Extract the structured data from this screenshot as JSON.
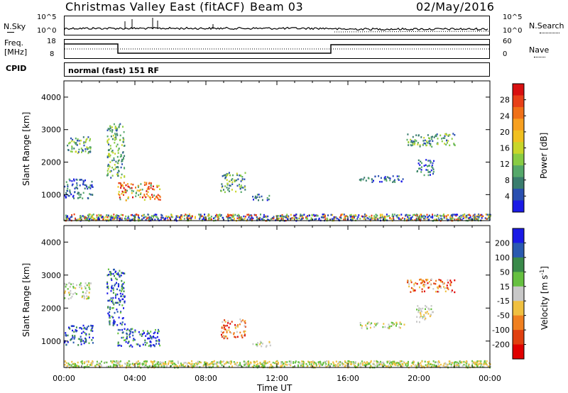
{
  "header": {
    "station": "Christmas Valley East (fitACF)",
    "beam": "Beam 03",
    "date": "02/May/2016"
  },
  "top_panels": {
    "nsky_label": "N.Sky",
    "nsky_ticks": [
      "10^5",
      "10^0"
    ],
    "nsearch_label": "N.Search",
    "nsearch_ticks": [
      "10^5",
      "10^0"
    ],
    "freq_label_1": "Freq.",
    "freq_label_2": "[MHz]",
    "freq_ticks": [
      "18",
      "8"
    ],
    "nave_label": "Nave",
    "nave_ticks": [
      "60",
      "0"
    ],
    "cpid_label": "CPID",
    "mode_text": "normal (fast) 151 RF"
  },
  "chart_data": [
    {
      "type": "heatmap",
      "name": "power-panel",
      "ylabel": "Slant Range [km]",
      "xlabel": "",
      "x_ticks": [
        "00:00",
        "04:00",
        "08:00",
        "12:00",
        "16:00",
        "20:00",
        "00:00"
      ],
      "y_ticks": [
        1000,
        2000,
        3000,
        4000
      ],
      "ylim": [
        200,
        4500
      ],
      "xlim_hours": [
        0,
        24
      ],
      "colorbar": {
        "label": "Power [dB]",
        "ticks": [
          "4",
          "8",
          "12",
          "16",
          "20",
          "24",
          "28"
        ],
        "range": [
          0,
          32
        ],
        "colors": [
          "#1a1ae6",
          "#2a4fb0",
          "#3a7d6e",
          "#55a86a",
          "#88cc44",
          "#c8d62a",
          "#f0c020",
          "#f7a020",
          "#f07018",
          "#e84018",
          "#d81010"
        ]
      },
      "regions": [
        {
          "t0": 0.0,
          "t1": 1.6,
          "r0": 900,
          "r1": 1500,
          "level": "low"
        },
        {
          "t0": 0.0,
          "t1": 1.5,
          "r0": 2300,
          "r1": 2800,
          "level": "mid"
        },
        {
          "t0": 2.4,
          "t1": 3.4,
          "r0": 1500,
          "r1": 3200,
          "level": "mid"
        },
        {
          "t0": 3.0,
          "t1": 5.4,
          "r0": 850,
          "r1": 1400,
          "level": "high"
        },
        {
          "t0": 8.8,
          "t1": 10.2,
          "r0": 1100,
          "r1": 1700,
          "level": "mid"
        },
        {
          "t0": 10.6,
          "t1": 11.6,
          "r0": 850,
          "r1": 1050,
          "level": "low"
        },
        {
          "t0": 16.6,
          "t1": 19.2,
          "r0": 1400,
          "r1": 1600,
          "level": "low"
        },
        {
          "t0": 19.3,
          "t1": 22.0,
          "r0": 2500,
          "r1": 2900,
          "level": "mid"
        },
        {
          "t0": 19.8,
          "t1": 20.8,
          "r0": 1600,
          "r1": 2100,
          "level": "low"
        },
        {
          "t0": 0.0,
          "t1": 24.0,
          "r0": 220,
          "r1": 420,
          "level": "noise"
        }
      ]
    },
    {
      "type": "heatmap",
      "name": "velocity-panel",
      "ylabel": "Slant Range [km]",
      "xlabel": "Time UT",
      "x_ticks": [
        "00:00",
        "04:00",
        "08:00",
        "12:00",
        "16:00",
        "20:00",
        "00:00"
      ],
      "y_ticks": [
        1000,
        2000,
        3000,
        4000
      ],
      "ylim": [
        200,
        4500
      ],
      "xlim_hours": [
        0,
        24
      ],
      "colorbar": {
        "label": "Velocity [m s^-1]",
        "ticks": [
          "200",
          "100",
          "50",
          "15",
          "-15",
          "-50",
          "-100",
          "-200"
        ],
        "colors": [
          "#1a1ae6",
          "#2a5ab0",
          "#3a8a4a",
          "#66c040",
          "#c8c8c8",
          "#f0c040",
          "#f08020",
          "#e04010",
          "#e00000"
        ]
      },
      "regions": [
        {
          "t0": 0.0,
          "t1": 1.6,
          "r0": 900,
          "r1": 1500,
          "level": "pos"
        },
        {
          "t0": 0.0,
          "t1": 1.5,
          "r0": 2300,
          "r1": 2800,
          "level": "grey"
        },
        {
          "t0": 2.4,
          "t1": 3.4,
          "r0": 1500,
          "r1": 3200,
          "level": "pos"
        },
        {
          "t0": 3.0,
          "t1": 5.4,
          "r0": 850,
          "r1": 1400,
          "level": "pos"
        },
        {
          "t0": 8.8,
          "t1": 10.2,
          "r0": 1100,
          "r1": 1700,
          "level": "neg"
        },
        {
          "t0": 10.6,
          "t1": 11.6,
          "r0": 850,
          "r1": 1050,
          "level": "grey"
        },
        {
          "t0": 16.6,
          "t1": 19.2,
          "r0": 1400,
          "r1": 1600,
          "level": "grey"
        },
        {
          "t0": 19.3,
          "t1": 22.0,
          "r0": 2500,
          "r1": 2900,
          "level": "neg"
        },
        {
          "t0": 19.8,
          "t1": 20.8,
          "r0": 1600,
          "r1": 2100,
          "level": "grey"
        },
        {
          "t0": 0.0,
          "t1": 24.0,
          "r0": 220,
          "r1": 420,
          "level": "ground"
        }
      ]
    }
  ]
}
